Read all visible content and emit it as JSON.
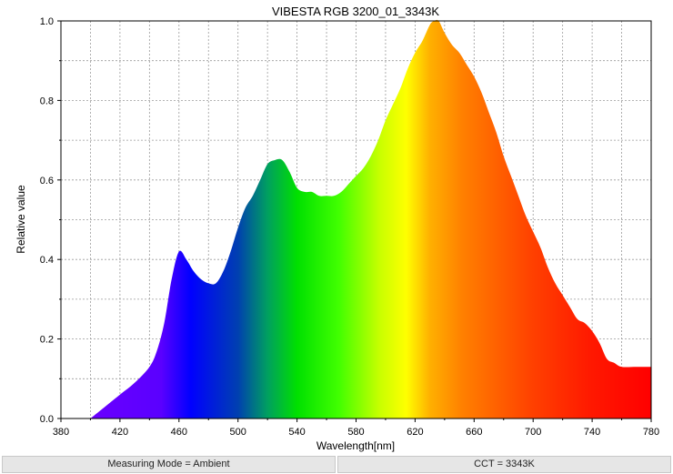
{
  "chart_data": {
    "type": "area",
    "title": "VIBESTA RGB 3200_01_3343K",
    "xlabel": "Wavelength[nm]",
    "ylabel": "Relative value",
    "xlim": [
      380,
      780
    ],
    "ylim": [
      0,
      1.0
    ],
    "x_ticks": [
      "380",
      "420",
      "460",
      "500",
      "540",
      "580",
      "620",
      "660",
      "700",
      "740",
      "780"
    ],
    "y_ticks": [
      "0.0",
      "0.2",
      "0.4",
      "0.6",
      "0.8",
      "1.0"
    ],
    "grid": true,
    "fill": "visible-spectrum gradient",
    "x": [
      400,
      410,
      420,
      430,
      440,
      445,
      450,
      455,
      460,
      465,
      470,
      475,
      480,
      485,
      490,
      495,
      500,
      505,
      510,
      515,
      520,
      525,
      530,
      535,
      540,
      545,
      550,
      555,
      560,
      565,
      570,
      575,
      580,
      585,
      590,
      595,
      600,
      605,
      610,
      615,
      620,
      625,
      630,
      633,
      636,
      640,
      645,
      650,
      655,
      660,
      665,
      670,
      675,
      680,
      685,
      690,
      695,
      700,
      705,
      710,
      715,
      720,
      725,
      730,
      735,
      740,
      745,
      750,
      755,
      760,
      770,
      780
    ],
    "y": [
      0.0,
      0.03,
      0.06,
      0.09,
      0.13,
      0.17,
      0.24,
      0.35,
      0.42,
      0.4,
      0.37,
      0.35,
      0.34,
      0.34,
      0.37,
      0.42,
      0.48,
      0.53,
      0.56,
      0.6,
      0.64,
      0.65,
      0.65,
      0.62,
      0.58,
      0.57,
      0.57,
      0.56,
      0.56,
      0.56,
      0.57,
      0.59,
      0.61,
      0.63,
      0.66,
      0.7,
      0.75,
      0.79,
      0.83,
      0.88,
      0.92,
      0.95,
      0.99,
      1.0,
      1.0,
      0.97,
      0.94,
      0.92,
      0.89,
      0.86,
      0.82,
      0.77,
      0.72,
      0.66,
      0.61,
      0.56,
      0.51,
      0.47,
      0.43,
      0.38,
      0.34,
      0.31,
      0.28,
      0.25,
      0.24,
      0.22,
      0.19,
      0.15,
      0.14,
      0.13,
      0.13,
      0.13
    ]
  },
  "status": {
    "measuring_mode": "Measuring Mode = Ambient",
    "cct": "CCT = 3343K"
  }
}
